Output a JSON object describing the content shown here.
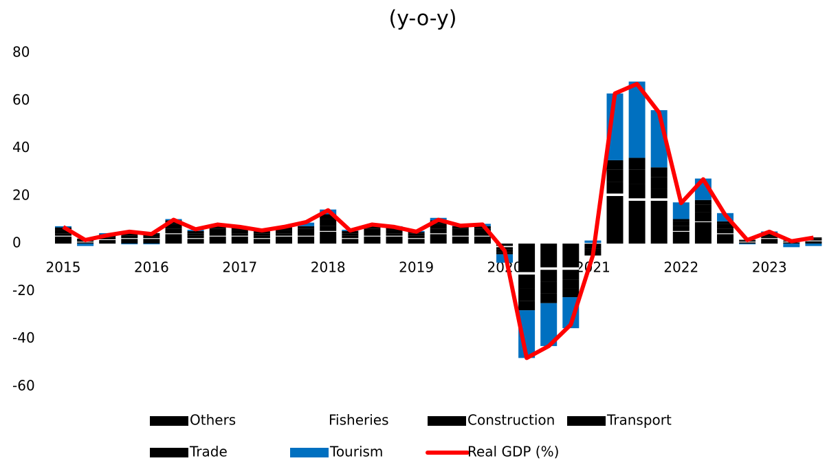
{
  "chart_data": {
    "type": "bar",
    "title": "(y-o-y)",
    "categories": [
      "2015",
      null,
      null,
      null,
      "2016",
      null,
      null,
      null,
      "2017",
      null,
      null,
      null,
      "2018",
      null,
      null,
      null,
      "2019",
      null,
      null,
      null,
      "2020",
      null,
      null,
      null,
      "2021",
      null,
      null,
      null,
      "2022",
      null,
      null,
      null,
      "2023",
      null,
      null
    ],
    "ylim": [
      -60,
      80
    ],
    "yticks": [
      -60,
      -40,
      -20,
      0,
      20,
      40,
      60,
      80
    ],
    "series": [
      {
        "name": "Others",
        "color": "#000000",
        "values": [
          3,
          0.5,
          1.5,
          2,
          2,
          4,
          2,
          3,
          3,
          2,
          3,
          3,
          5,
          2,
          3,
          3,
          2,
          4,
          3,
          3,
          -1,
          -12,
          -10,
          -10,
          -2,
          20,
          18,
          18,
          5,
          9,
          4,
          0.5,
          2,
          0.5,
          1
        ]
      },
      {
        "name": "Fisheries",
        "color": "#ffffff",
        "values": [
          0.3,
          0.3,
          0.3,
          0.3,
          0.3,
          0.3,
          0.3,
          0.3,
          0.3,
          0.3,
          0.3,
          0.3,
          0.3,
          0.3,
          0.3,
          0.3,
          0.3,
          0.3,
          0.3,
          0.3,
          -0.5,
          -1,
          -1,
          -1,
          0.3,
          1,
          1,
          1,
          0.3,
          0.3,
          0.3,
          0.3,
          0.3,
          0.3,
          0.3
        ]
      },
      {
        "name": "Construction",
        "color": "#000000",
        "values": [
          1,
          0.5,
          0.8,
          1,
          0.8,
          2,
          1,
          1.5,
          1,
          1,
          1,
          1.5,
          2,
          1,
          1.5,
          1,
          1,
          2,
          1.5,
          1.5,
          -1,
          -6,
          -5,
          -4,
          -1,
          5,
          6,
          4,
          2,
          4,
          2,
          0.3,
          0.8,
          0.2,
          0.5
        ]
      },
      {
        "name": "Transport",
        "color": "#000000",
        "values": [
          1.5,
          0.5,
          0.8,
          1,
          0.8,
          2,
          1,
          1.5,
          1.5,
          1,
          1.5,
          1.5,
          3,
          1,
          1.5,
          1.5,
          1,
          2,
          1.5,
          1.5,
          -1,
          -5,
          -5,
          -4,
          -1,
          5,
          6,
          5,
          2,
          3,
          2,
          0.3,
          1,
          0.2,
          0.5
        ]
      },
      {
        "name": "Trade",
        "color": "#000000",
        "values": [
          1,
          0.3,
          0.5,
          0.7,
          0.5,
          1.5,
          1,
          1,
          1,
          0.8,
          1,
          1,
          2,
          1,
          1,
          1,
          0.5,
          1.5,
          1,
          1,
          -1,
          -4,
          -4,
          -3.5,
          -1,
          4,
          5,
          4,
          1,
          2,
          1,
          0.2,
          0.5,
          0.1,
          0.3
        ]
      },
      {
        "name": "Tourism",
        "color": "#0070c0",
        "values": [
          0.5,
          -1,
          0.5,
          -0.3,
          -0.3,
          0.5,
          0.5,
          0.5,
          0,
          0.5,
          0.2,
          1.5,
          2,
          0.5,
          0.5,
          0.5,
          0.5,
          1,
          0.5,
          1,
          -3.5,
          -20,
          -18,
          -13,
          1,
          28,
          32,
          24,
          7,
          9,
          3.5,
          -0.3,
          0.5,
          -1.5,
          -1
        ]
      },
      {
        "name": "Real GDP (%)",
        "color": "#ff0000",
        "type": "line",
        "values": [
          7,
          1.5,
          3.5,
          5,
          4,
          10,
          6,
          8,
          7,
          5.5,
          7,
          9,
          14,
          5.5,
          8,
          7,
          5,
          10,
          7.5,
          8,
          -3,
          -48,
          -43,
          -34,
          -5,
          63,
          67,
          55,
          17,
          27,
          12,
          1.5,
          5,
          1,
          2.5
        ]
      }
    ]
  }
}
